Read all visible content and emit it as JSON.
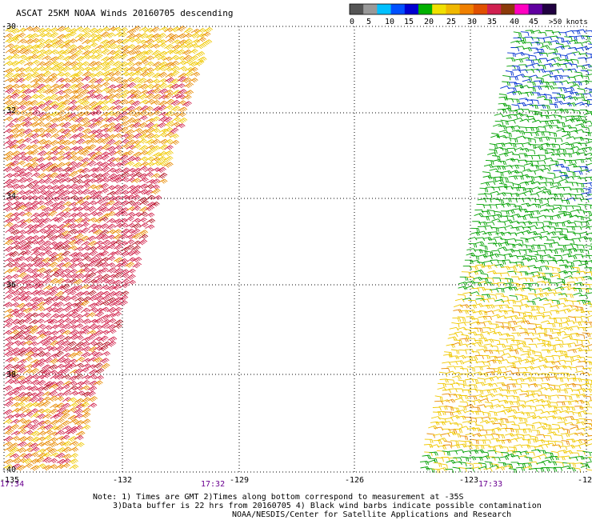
{
  "title": "ASCAT 25KM NOAA Winds 20160705 descending",
  "legend": {
    "swatches": [
      "#555555",
      "#999999",
      "#00c0ff",
      "#0050ff",
      "#0000d0",
      "#00b000",
      "#f0e000",
      "#f0b800",
      "#f08000",
      "#e05000",
      "#d02050",
      "#8b3a0a",
      "#ff00c0",
      "#6000a0",
      "#200040"
    ],
    "labels": [
      "0",
      "5",
      "10",
      "15",
      "20",
      "25",
      "30",
      "35",
      "40",
      "45",
      ">50 knots"
    ]
  },
  "lat_labels": [
    "-30",
    "-32",
    "-34",
    "-36",
    "-38",
    "-40"
  ],
  "lon_labels": [
    "-132",
    "-129",
    "-126",
    "-123",
    "-12"
  ],
  "left_edge_lon": "-135",
  "times": [
    "17:34",
    "17:32",
    "17:33"
  ],
  "notes": [
    "Note: 1) Times are GMT 2)Times along bottom correspond to measurement at -35S",
    "3)Data buffer is 22 hrs from 20160705 4) Black wind barbs indicate possible contamination",
    "NOAA/NESDIS/Center for Satellite Applications and Research"
  ],
  "palette": {
    "yellow": "#f0c800",
    "orange": "#e88a00",
    "red": "#d0204a",
    "dark_red": "#b01020",
    "green": "#00a000",
    "blue": "#0030d0"
  }
}
